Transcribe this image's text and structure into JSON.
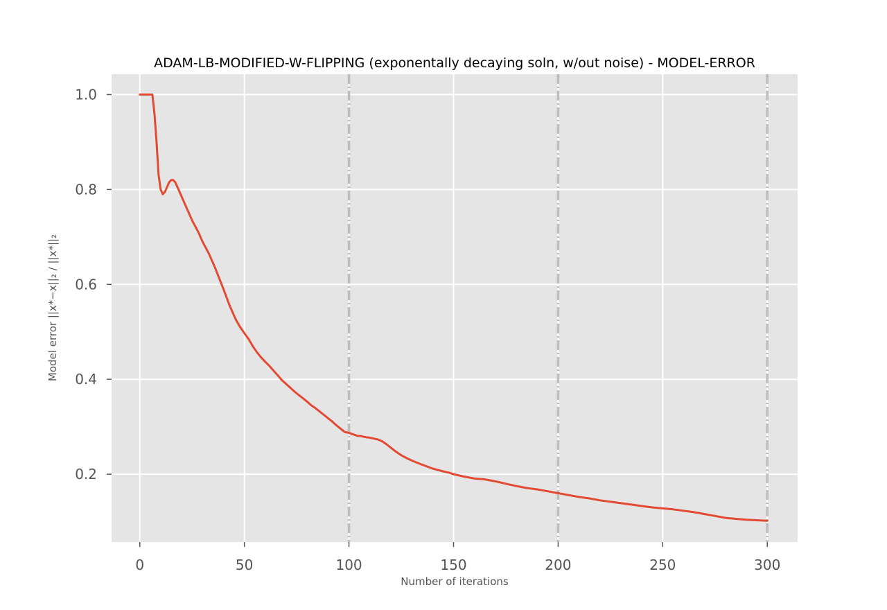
{
  "chart_data": {
    "type": "line",
    "title": "ADAM-LB-MODIFIED-W-FLIPPING (exponentally decaying soln, w/out noise) - MODEL-ERROR",
    "xlabel": "Number of iterations",
    "ylabel": "Model error ||x*−x||₂ / ||x*||₂",
    "xlim": [
      -13.5,
      314.5
    ],
    "ylim": [
      0.057,
      1.043
    ],
    "xticks": [
      0,
      50,
      100,
      150,
      200,
      250,
      300
    ],
    "yticks": [
      0.2,
      0.4,
      0.6,
      0.8,
      1.0
    ],
    "xtick_labels": [
      "0",
      "50",
      "100",
      "150",
      "200",
      "250",
      "300"
    ],
    "ytick_labels": [
      "0.2",
      "0.4",
      "0.6",
      "0.8",
      "1.0"
    ],
    "grid": true,
    "vlines": [
      100,
      200,
      300
    ],
    "series": [
      {
        "color": "#e24a33",
        "x": [
          0,
          2,
          4,
          6,
          7,
          8,
          9,
          10,
          11,
          12,
          13,
          14,
          15,
          16,
          17,
          18,
          19,
          20,
          22,
          25,
          28,
          30,
          33,
          36,
          40,
          43,
          46,
          48,
          50,
          52,
          54,
          56,
          58,
          60,
          62,
          64,
          66,
          68,
          70,
          72,
          74,
          76,
          78,
          80,
          82,
          84,
          86,
          88,
          90,
          92,
          94,
          96,
          98,
          100,
          102,
          104,
          106,
          108,
          110,
          112,
          114,
          116,
          118,
          120,
          122,
          125,
          128,
          131,
          135,
          140,
          145,
          148,
          150,
          155,
          160,
          165,
          170,
          175,
          180,
          185,
          190,
          195,
          200,
          205,
          210,
          215,
          220,
          225,
          230,
          235,
          240,
          245,
          250,
          255,
          260,
          265,
          270,
          275,
          280,
          285,
          290,
          295,
          300
        ],
        "y": [
          1.0,
          1.0,
          1.0,
          1.0,
          0.96,
          0.9,
          0.83,
          0.8,
          0.79,
          0.795,
          0.805,
          0.815,
          0.82,
          0.82,
          0.815,
          0.805,
          0.795,
          0.785,
          0.765,
          0.735,
          0.71,
          0.69,
          0.665,
          0.635,
          0.59,
          0.555,
          0.525,
          0.51,
          0.497,
          0.485,
          0.47,
          0.457,
          0.446,
          0.437,
          0.428,
          0.418,
          0.408,
          0.398,
          0.39,
          0.382,
          0.374,
          0.367,
          0.36,
          0.353,
          0.345,
          0.339,
          0.332,
          0.325,
          0.318,
          0.311,
          0.303,
          0.296,
          0.289,
          0.287,
          0.284,
          0.281,
          0.28,
          0.278,
          0.277,
          0.275,
          0.273,
          0.269,
          0.263,
          0.256,
          0.249,
          0.24,
          0.233,
          0.227,
          0.22,
          0.212,
          0.206,
          0.203,
          0.2,
          0.195,
          0.191,
          0.189,
          0.185,
          0.18,
          0.175,
          0.171,
          0.168,
          0.164,
          0.16,
          0.156,
          0.152,
          0.149,
          0.145,
          0.142,
          0.139,
          0.136,
          0.133,
          0.13,
          0.128,
          0.126,
          0.123,
          0.12,
          0.116,
          0.112,
          0.108,
          0.106,
          0.104,
          0.103,
          0.102
        ]
      }
    ]
  }
}
